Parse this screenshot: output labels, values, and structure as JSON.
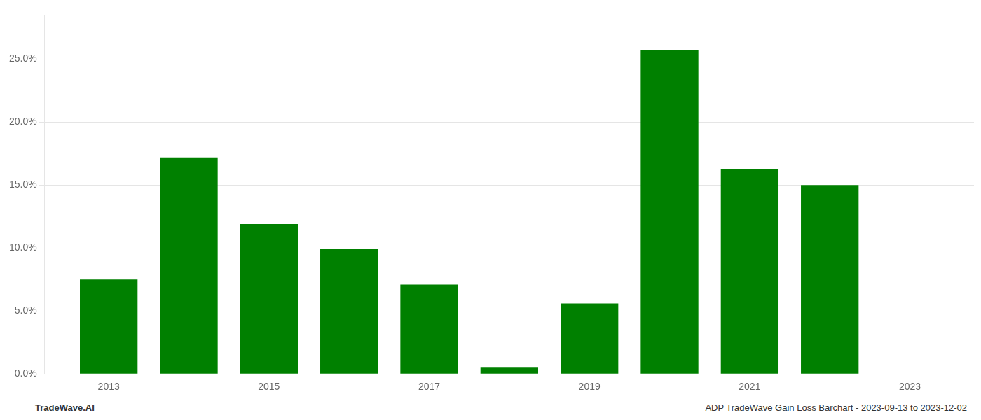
{
  "chart_data": {
    "type": "bar",
    "x": [
      2013,
      2014,
      2015,
      2016,
      2017,
      2018,
      2019,
      2020,
      2021,
      2022,
      2023
    ],
    "values": [
      0.075,
      0.172,
      0.119,
      0.099,
      0.071,
      0.005,
      0.056,
      0.257,
      0.163,
      0.15,
      0.0
    ],
    "color": "#008000",
    "xlim": [
      2012.2,
      2023.8
    ],
    "xticks": [
      2013,
      2015,
      2017,
      2019,
      2021,
      2023
    ],
    "ylim": [
      0,
      0.285
    ],
    "yticks": [
      {
        "value": 0.0,
        "label": "0.0%"
      },
      {
        "value": 0.05,
        "label": "5.0%"
      },
      {
        "value": 0.1,
        "label": "10.0%"
      },
      {
        "value": 0.15,
        "label": "15.0%"
      },
      {
        "value": 0.2,
        "label": "20.0%"
      },
      {
        "value": 0.25,
        "label": "25.0%"
      }
    ],
    "grid": "y",
    "annotations": [
      "TradeWave.AI",
      "ADP TradeWave Gain Loss Barchart - 2023-09-13 to 2023-12-02"
    ]
  }
}
